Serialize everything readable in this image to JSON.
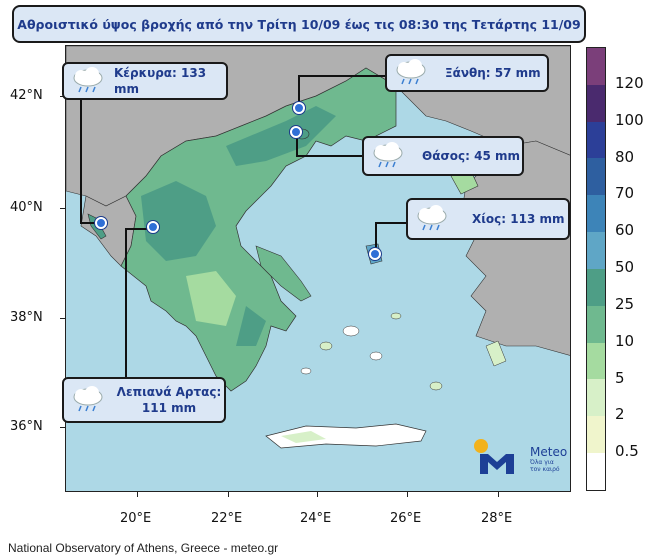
{
  "title": "Αθροιστικό ύψος βροχής από την Τρίτη 10/09 έως τις 08:30 της Τετάρτης 11/09",
  "y_ticks": [
    "42°N",
    "40°N",
    "38°N",
    "36°N"
  ],
  "x_ticks": [
    "20°E",
    "22°E",
    "24°E",
    "26°E",
    "28°E"
  ],
  "stations": [
    {
      "label": "Κέρκυρα: 133 mm",
      "icon": "rain-cloud-icon"
    },
    {
      "label": "Ξάνθη: 57 mm",
      "icon": "rain-cloud-icon"
    },
    {
      "label": "Θάσος: 45 mm",
      "icon": "rain-cloud-icon"
    },
    {
      "label": "Χίος: 113 mm",
      "icon": "rain-cloud-icon"
    },
    {
      "label": "Λεπιανά Αρτας:",
      "label2": "111 mm",
      "icon": "rain-cloud-icon"
    }
  ],
  "colorbar": {
    "labels": [
      "120",
      "100",
      "80",
      "70",
      "60",
      "50",
      "25",
      "10",
      "5",
      "2",
      "0.5"
    ],
    "colors": [
      "#7b3f7a",
      "#4a2a6e",
      "#2c3f98",
      "#2e5fa0",
      "#3d84b8",
      "#5fa6c6",
      "#4e9e86",
      "#6fb98f",
      "#a5dba0",
      "#d7f0c8",
      "#f0f5cc",
      "#ffffff"
    ]
  },
  "logo": {
    "name": "Meteo",
    "tagline1": "Όλα για",
    "tagline2": "τον καιρό"
  },
  "footer": "National Observatory of Athens, Greece - meteo.gr",
  "colors": {
    "sea": "#add8e6",
    "land_other": "#b0b0b0",
    "title_text": "#1f3b8c"
  }
}
